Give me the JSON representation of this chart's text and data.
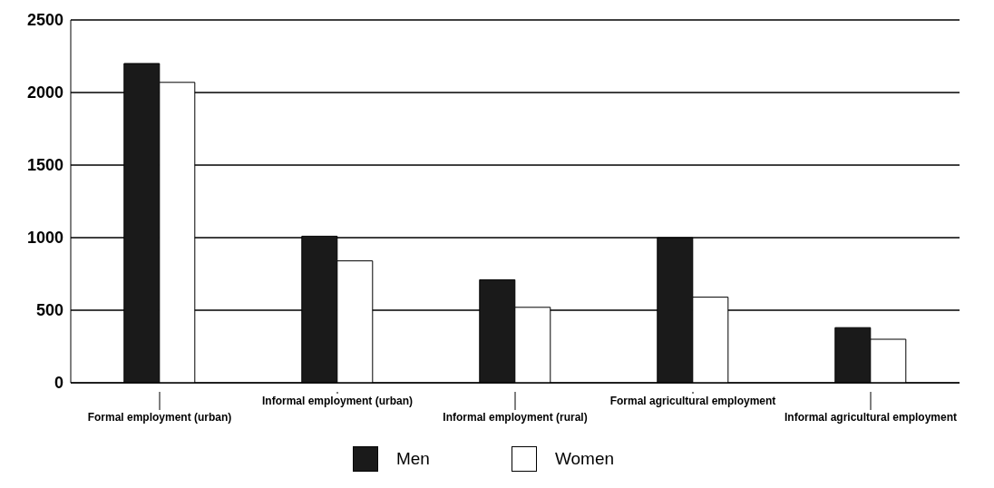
{
  "chart_data": {
    "type": "bar",
    "categories": [
      "Formal employment (urban)",
      "Informal employment (urban)",
      "Informal employment (rural)",
      "Formal agricultural employment",
      "Informal agricultural employment"
    ],
    "series": [
      {
        "name": "Men",
        "color": "#1a1a1a",
        "values": [
          2200,
          1010,
          710,
          1000,
          380
        ]
      },
      {
        "name": "Women",
        "color": "#ffffff",
        "values": [
          2070,
          840,
          520,
          590,
          300
        ]
      }
    ],
    "ylim": [
      0,
      2500
    ],
    "yticks": [
      0,
      500,
      1000,
      1500,
      2000,
      2500
    ],
    "grid": "y",
    "legend": "bottom"
  }
}
